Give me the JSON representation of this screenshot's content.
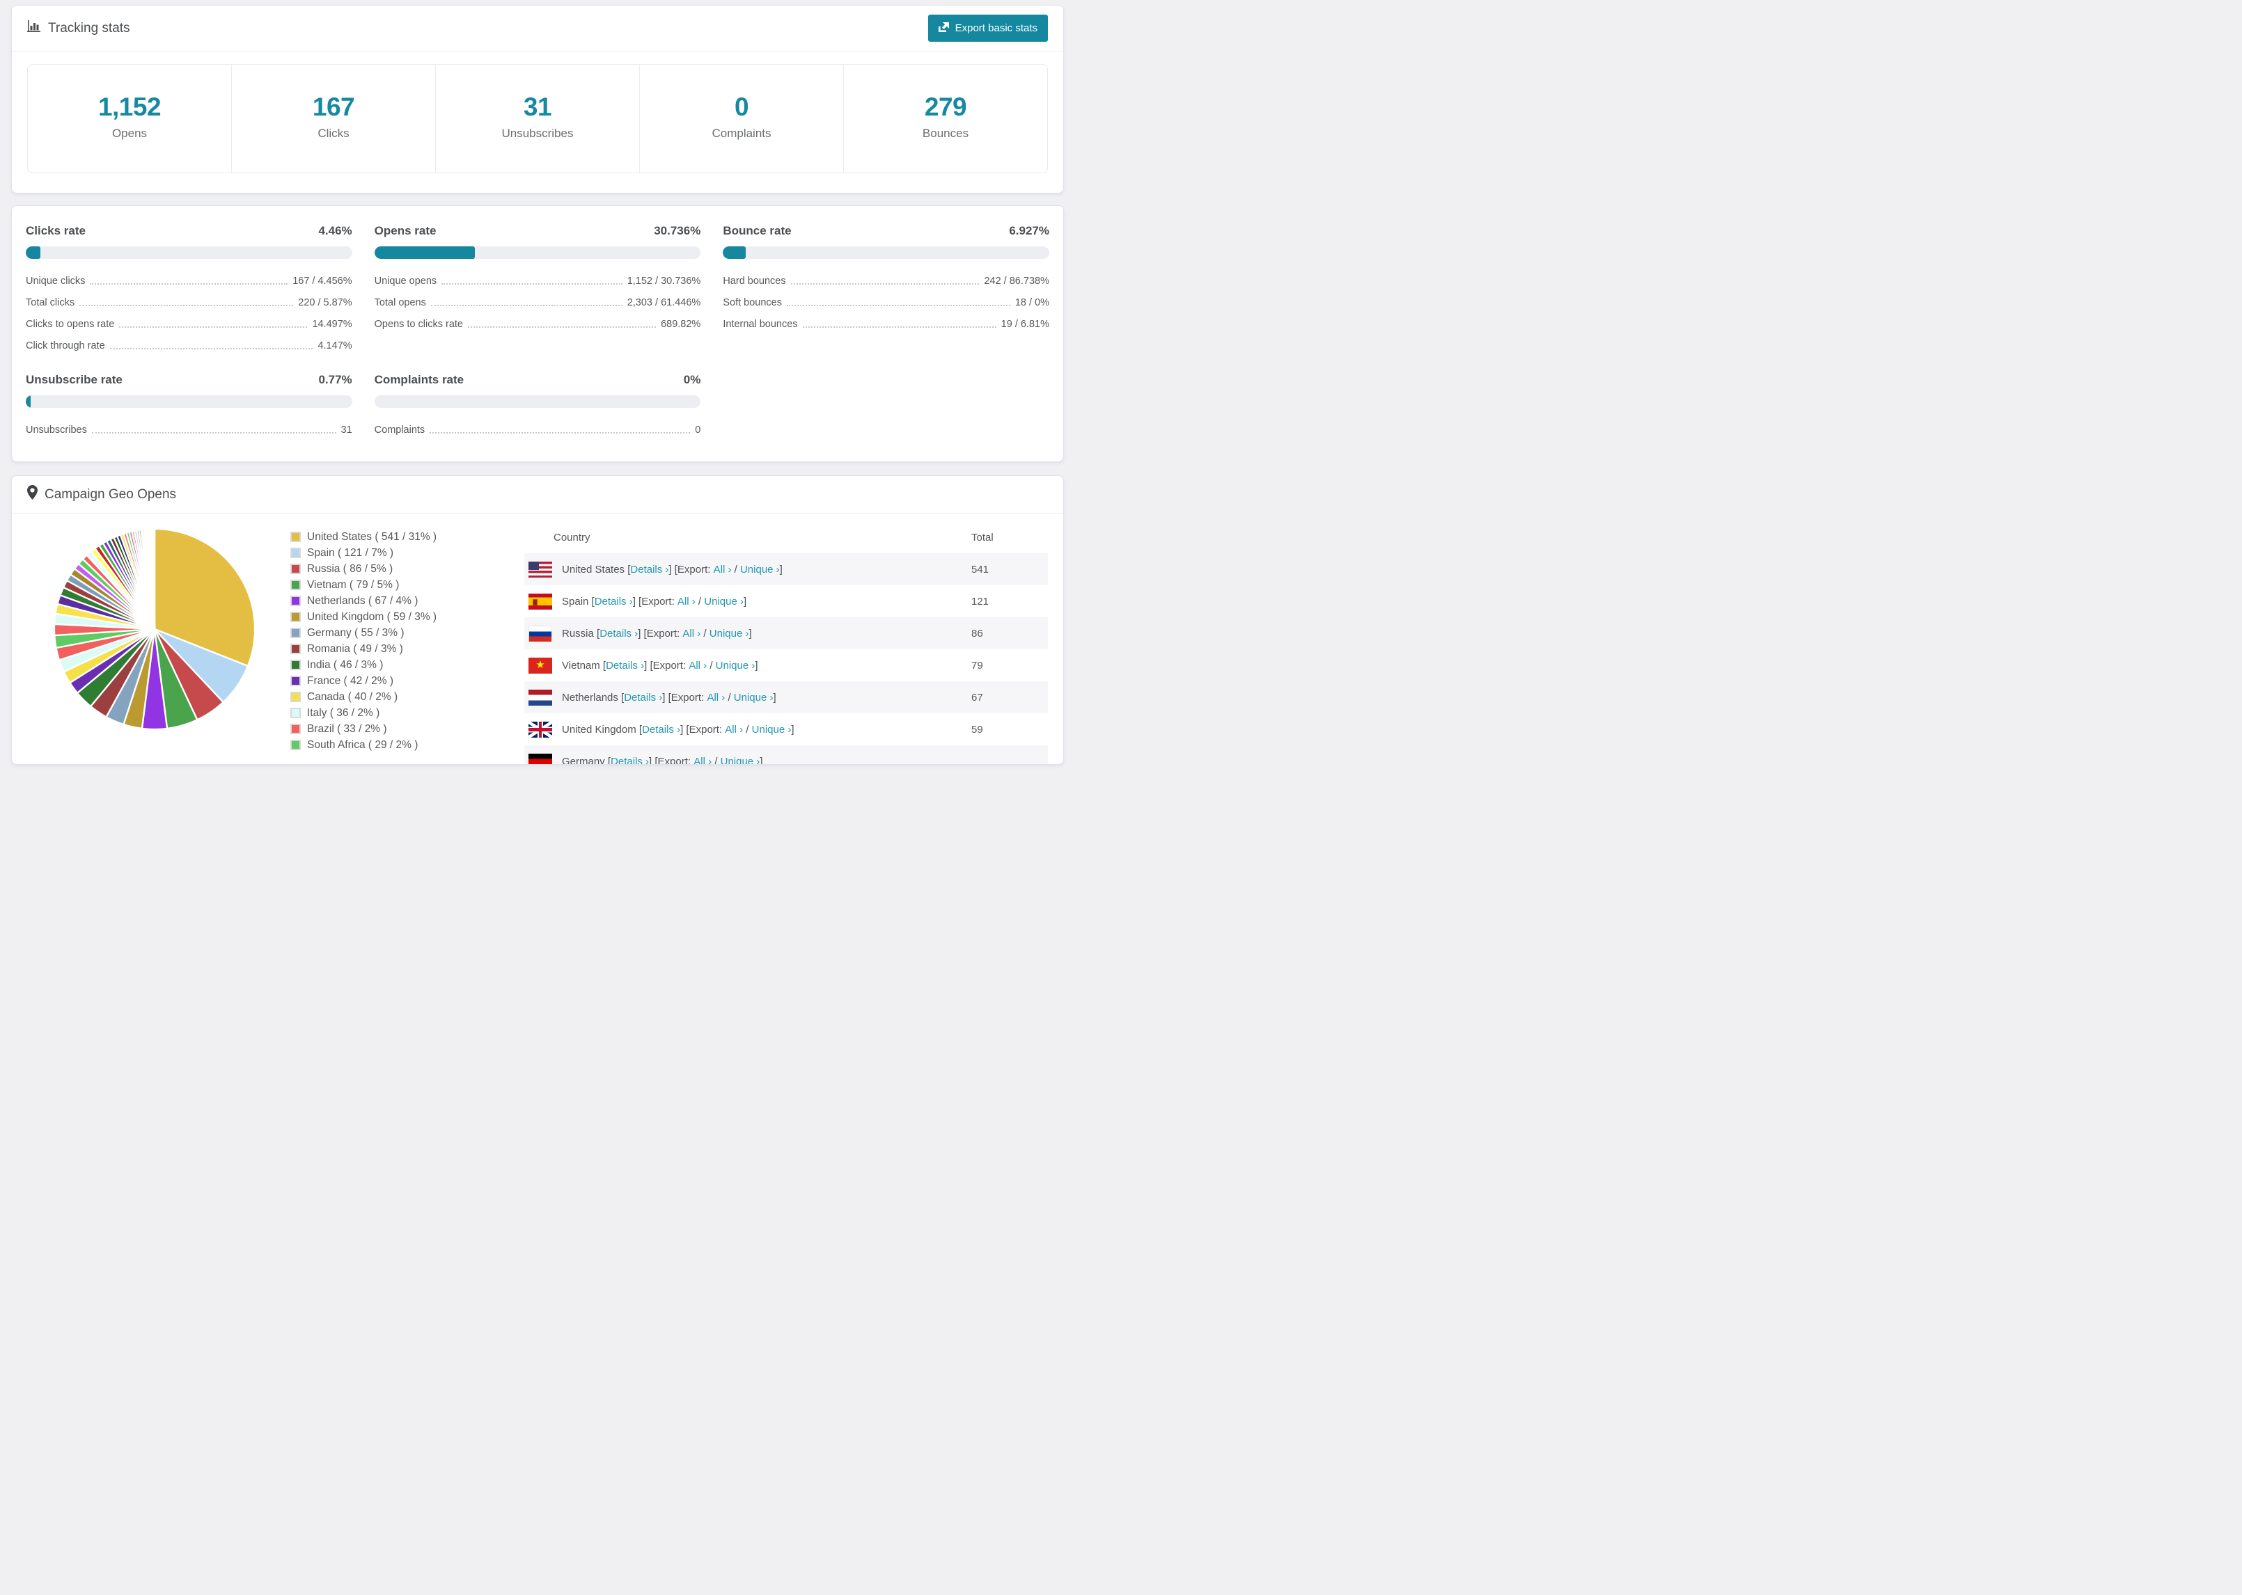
{
  "header": {
    "title": "Tracking stats",
    "export_button": "Export basic stats"
  },
  "summary_stats": [
    {
      "value": "1,152",
      "label": "Opens"
    },
    {
      "value": "167",
      "label": "Clicks"
    },
    {
      "value": "31",
      "label": "Unsubscribes"
    },
    {
      "value": "0",
      "label": "Complaints"
    },
    {
      "value": "279",
      "label": "Bounces"
    }
  ],
  "rates": [
    {
      "title": "Clicks rate",
      "value": "4.46%",
      "progress_pct": 4.46,
      "rows": [
        [
          "Unique clicks",
          "167 / 4.456%"
        ],
        [
          "Total clicks",
          "220 / 5.87%"
        ],
        [
          "Clicks to opens rate",
          "14.497%"
        ],
        [
          "Click through rate",
          "4.147%"
        ]
      ]
    },
    {
      "title": "Opens rate",
      "value": "30.736%",
      "progress_pct": 30.736,
      "rows": [
        [
          "Unique opens",
          "1,152 / 30.736%"
        ],
        [
          "Total opens",
          "2,303 / 61.446%"
        ],
        [
          "Opens to clicks rate",
          "689.82%"
        ]
      ]
    },
    {
      "title": "Bounce rate",
      "value": "6.927%",
      "progress_pct": 6.927,
      "rows": [
        [
          "Hard bounces",
          "242 / 86.738%"
        ],
        [
          "Soft bounces",
          "18 / 0%"
        ],
        [
          "Internal bounces",
          "19 / 6.81%"
        ]
      ]
    },
    {
      "title": "Unsubscribe rate",
      "value": "0.77%",
      "progress_pct": 0.77,
      "rows": [
        [
          "Unsubscribes",
          "31"
        ]
      ]
    },
    {
      "title": "Complaints rate",
      "value": "0%",
      "progress_pct": 0,
      "rows": [
        [
          "Complaints",
          "0"
        ]
      ]
    }
  ],
  "geo": {
    "title": "Campaign Geo Opens",
    "table": {
      "headers": [
        "Country",
        "Total"
      ],
      "link_labels": {
        "lb": "[",
        "rb": "]",
        "details": "Details ›",
        "export": "Export:",
        "all": "All ›",
        "slash": "/",
        "unique": "Unique ›"
      },
      "rows": [
        {
          "flag": "us",
          "country": "United States",
          "total": "541"
        },
        {
          "flag": "es",
          "country": "Spain",
          "total": "121"
        },
        {
          "flag": "ru",
          "country": "Russia",
          "total": "86"
        },
        {
          "flag": "vn",
          "country": "Vietnam",
          "total": "79"
        },
        {
          "flag": "nl",
          "country": "Netherlands",
          "total": "67"
        },
        {
          "flag": "gb",
          "country": "United Kingdom",
          "total": "59"
        },
        {
          "flag": "de",
          "country": "Germany",
          "total": "",
          "partial": true
        }
      ]
    }
  },
  "chart_data": {
    "type": "pie",
    "title": "Campaign Geo Opens",
    "legend_position": "right",
    "start_angle_deg": -90,
    "direction": "clockwise",
    "slices": [
      {
        "name": "United States",
        "value": 541,
        "pct": 31,
        "color": "#e4bd43"
      },
      {
        "name": "Spain",
        "value": 121,
        "pct": 7,
        "color": "#b3d7f3"
      },
      {
        "name": "Russia",
        "value": 86,
        "pct": 5,
        "color": "#c64a4c"
      },
      {
        "name": "Vietnam",
        "value": 79,
        "pct": 5,
        "color": "#4aa44c"
      },
      {
        "name": "Netherlands",
        "value": 67,
        "pct": 4,
        "color": "#9334e4"
      },
      {
        "name": "United Kingdom",
        "value": 59,
        "pct": 3,
        "color": "#bb9a30"
      },
      {
        "name": "Germany",
        "value": 55,
        "pct": 3,
        "color": "#84a3be"
      },
      {
        "name": "Romania",
        "value": 49,
        "pct": 3,
        "color": "#9c3f41"
      },
      {
        "name": "India",
        "value": 46,
        "pct": 3,
        "color": "#2e7d32"
      },
      {
        "name": "France",
        "value": 42,
        "pct": 2,
        "color": "#6a2eb2"
      },
      {
        "name": "Canada",
        "value": 40,
        "pct": 2,
        "color": "#f5e04a"
      },
      {
        "name": "Italy",
        "value": 36,
        "pct": 2,
        "color": "#dcfbf7"
      },
      {
        "name": "Brazil",
        "value": 33,
        "pct": 2,
        "color": "#f15f5f"
      },
      {
        "name": "South Africa",
        "value": 29,
        "pct": 2,
        "color": "#5ecb63"
      }
    ],
    "others": {
      "total_pct": 26,
      "weights": [
        1.6,
        1.5,
        1.4,
        1.3,
        1.2,
        1.1,
        1.0,
        1.0,
        0.9,
        0.9,
        0.8,
        0.8,
        0.7,
        0.7,
        0.65,
        0.6,
        0.6,
        0.55,
        0.5,
        0.5,
        0.45,
        0.45,
        0.4,
        0.4,
        0.35,
        0.35,
        0.3,
        0.3,
        0.25,
        0.25,
        0.2,
        0.2,
        0.18,
        0.16,
        0.14,
        0.12,
        0.1,
        0.09,
        0.08,
        0.07,
        0.06,
        0.05
      ],
      "colors": [
        "#f26060",
        "#dcfbf7",
        "#f7e24d",
        "#5b2da0",
        "#2f7d32",
        "#9c3f3f",
        "#7f9db8",
        "#a8862c",
        "#c65cf0",
        "#5ecb63",
        "#f26060",
        "#eafcfa",
        "#ffff55",
        "#cc2222",
        "#44aa44",
        "#8a2be2",
        "#2b6777",
        "#7a2e2e",
        "#1d5c1d",
        "#2d2d7a",
        "#f5e04a",
        "#f08080",
        "#55dd55",
        "#e055e0",
        "#c9a227",
        "#a9d3f5",
        "#dd4444",
        "#3caa3c",
        "#7733cc",
        "#225577",
        "#883333",
        "#116611",
        "#443388",
        "#eedd44",
        "#ee7777",
        "#66ee66",
        "#ee66ee",
        "#bb9922",
        "#99ccee",
        "#cc5555",
        "#55bb55",
        "#9944dd"
      ]
    }
  }
}
